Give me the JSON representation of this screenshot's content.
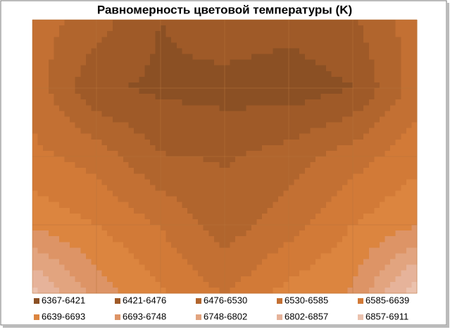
{
  "chart_data": {
    "type": "contour",
    "title": "Равномерность цветовой температуры (K)",
    "z": [
      [
        6560,
        6500,
        6420,
        6460,
        6440,
        6470,
        6560
      ],
      [
        6560,
        6430,
        6410,
        6400,
        6390,
        6420,
        6560
      ],
      [
        6600,
        6560,
        6480,
        6470,
        6500,
        6560,
        6620
      ],
      [
        6680,
        6640,
        6580,
        6500,
        6560,
        6640,
        6690
      ],
      [
        6880,
        6720,
        6650,
        6580,
        6660,
        6700,
        6900
      ]
    ],
    "bands": [
      {
        "name": "6367-6421",
        "color": "#8b5024",
        "range": [
          6367,
          6421
        ]
      },
      {
        "name": "6421-6476",
        "color": "#9f5a28",
        "range": [
          6421,
          6476
        ]
      },
      {
        "name": "6476-6530",
        "color": "#b1652d",
        "range": [
          6476,
          6530
        ]
      },
      {
        "name": "6530-6585",
        "color": "#c37033",
        "range": [
          6530,
          6585
        ]
      },
      {
        "name": "6585-6639",
        "color": "#d27a37",
        "range": [
          6585,
          6639
        ]
      },
      {
        "name": "6639-6693",
        "color": "#dc853f",
        "range": [
          6639,
          6693
        ]
      },
      {
        "name": "6693-6748",
        "color": "#dd9466",
        "range": [
          6693,
          6748
        ]
      },
      {
        "name": "6748-6802",
        "color": "#e2a47f",
        "range": [
          6748,
          6802
        ]
      },
      {
        "name": "6802-6857",
        "color": "#e6b39a",
        "range": [
          6802,
          6857
        ]
      },
      {
        "name": "6857-6911",
        "color": "#ebc2ae",
        "range": [
          6857,
          6911
        ]
      }
    ]
  }
}
